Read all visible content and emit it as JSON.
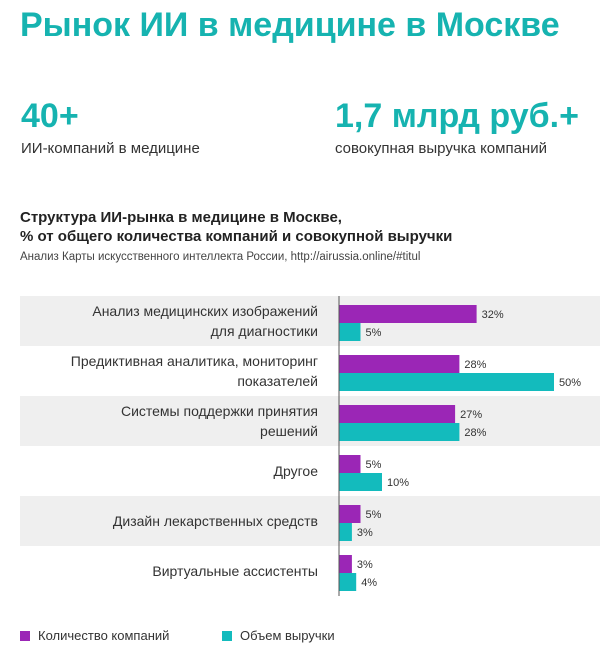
{
  "title": "Рынок ИИ в медицине в Москве",
  "stats": [
    {
      "value": "40+",
      "label": "ИИ-компаний в медицине"
    },
    {
      "value": "1,7 млрд руб.+",
      "label": "совокупная выручка компаний"
    }
  ],
  "colors": {
    "accent": "#16b3b0",
    "companies": "#9b26b6",
    "revenue": "#13bbbd",
    "row_stripe": "#efefef",
    "axis": "#555555"
  },
  "chart_data": {
    "type": "bar",
    "orientation": "horizontal",
    "title_lines": [
      "Структура ИИ-рынка в медицине в Москве,",
      "% от общего количества компаний и совокупной выручки"
    ],
    "subtitle": "Анализ Карты искусственного интеллекта России, http://airussia.online/#titul",
    "categories": [
      [
        "Анализ медицинских изображений",
        "для диагностики"
      ],
      [
        "Предиктивная аналитика, мониторинг",
        "показателей"
      ],
      [
        "Системы поддержки принятия",
        "решений"
      ],
      [
        "Другое"
      ],
      [
        "Дизайн лекарственных средств"
      ],
      [
        "Виртуальные ассистенты"
      ]
    ],
    "series": [
      {
        "name": "Количество компаний",
        "values": [
          32,
          28,
          27,
          5,
          5,
          3
        ],
        "labels": [
          "32%",
          "28%",
          "27%",
          "5%",
          "5%",
          "3%"
        ]
      },
      {
        "name": "Объем выручки",
        "values": [
          5,
          50,
          28,
          10,
          3,
          4
        ],
        "labels": [
          "5%",
          "50%",
          "28%",
          "10%",
          "3%",
          "4%"
        ]
      }
    ],
    "xlim": [
      0,
      100
    ],
    "grid": false,
    "legend_position": "bottom-left"
  }
}
